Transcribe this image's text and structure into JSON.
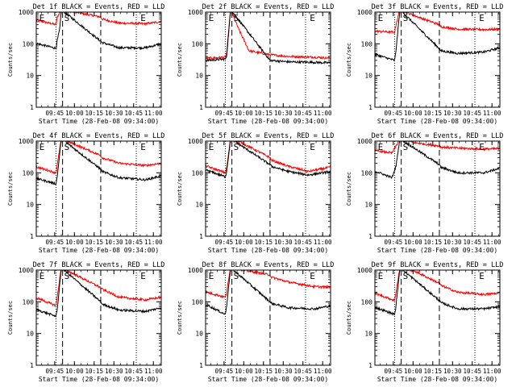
{
  "chart_data": {
    "type": "line",
    "grid": "3x3",
    "x_axis": {
      "label": "Start Time (28-Feb-08 09:34:00)",
      "ticks": [
        "09:45",
        "10:00",
        "10:15",
        "10:30",
        "10:45",
        "11:00"
      ],
      "range_min": [
        -3,
        92
      ]
    },
    "y_axis": {
      "label": "Counts/sec",
      "scale": "log",
      "range": [
        1,
        1000
      ],
      "ticks": [
        "1",
        "10",
        "100",
        "1000"
      ]
    },
    "legend": "BLACK = Events, RED = LLD",
    "series_colors": {
      "events": "#000000",
      "lld": "#ff0000"
    },
    "markers": [
      {
        "label": "E",
        "x_min": -2,
        "style": "none"
      },
      {
        "label": "",
        "x_min": 12,
        "style": "dotted"
      },
      {
        "label": "S",
        "x_min": 17,
        "style": "dashed"
      },
      {
        "label": "",
        "x_min": 46,
        "style": "dashed"
      },
      {
        "label": "",
        "x_min": 73,
        "style": "dotted"
      },
      {
        "label": "E",
        "x_min": 75,
        "style": "none"
      }
    ],
    "panels": [
      {
        "title": "Det 1f BLACK = Events, RED = LLD",
        "events": [
          [
            -2,
            100
          ],
          [
            12,
            72
          ],
          [
            13,
            130
          ],
          [
            15,
            320
          ],
          [
            16,
            1200
          ],
          [
            46,
            120
          ],
          [
            47,
            110
          ],
          [
            60,
            75
          ],
          [
            80,
            75
          ],
          [
            92,
            100
          ]
        ],
        "lld": [
          [
            -2,
            550
          ],
          [
            12,
            400
          ],
          [
            13,
            700
          ],
          [
            16,
            1200
          ],
          [
            46,
            700
          ],
          [
            47,
            600
          ],
          [
            60,
            450
          ],
          [
            80,
            430
          ],
          [
            92,
            500
          ]
        ]
      },
      {
        "title": "Det 2f BLACK = Events, RED = LLD",
        "events": [
          [
            -2,
            30
          ],
          [
            12,
            33
          ],
          [
            13,
            40
          ],
          [
            16,
            1200
          ],
          [
            46,
            30
          ],
          [
            60,
            27
          ],
          [
            80,
            26
          ],
          [
            92,
            25
          ]
        ],
        "lld": [
          [
            -2,
            35
          ],
          [
            12,
            38
          ],
          [
            13,
            50
          ],
          [
            16,
            1200
          ],
          [
            22,
            300
          ],
          [
            30,
            60
          ],
          [
            46,
            45
          ],
          [
            60,
            40
          ],
          [
            80,
            38
          ],
          [
            92,
            35
          ]
        ]
      },
      {
        "title": "Det 3f BLACK = Events, RED = LLD",
        "events": [
          [
            -2,
            45
          ],
          [
            12,
            30
          ],
          [
            13,
            60
          ],
          [
            16,
            1200
          ],
          [
            46,
            70
          ],
          [
            47,
            60
          ],
          [
            60,
            50
          ],
          [
            80,
            55
          ],
          [
            92,
            75
          ]
        ],
        "lld": [
          [
            -2,
            250
          ],
          [
            12,
            230
          ],
          [
            13,
            400
          ],
          [
            16,
            1200
          ],
          [
            26,
            800
          ],
          [
            46,
            400
          ],
          [
            47,
            350
          ],
          [
            60,
            290
          ],
          [
            80,
            280
          ],
          [
            92,
            290
          ]
        ]
      },
      {
        "title": "Det 4f BLACK = Events, RED = LLD",
        "events": [
          [
            -2,
            65
          ],
          [
            12,
            45
          ],
          [
            13,
            80
          ],
          [
            16,
            1200
          ],
          [
            46,
            130
          ],
          [
            47,
            110
          ],
          [
            60,
            70
          ],
          [
            80,
            60
          ],
          [
            92,
            80
          ]
        ],
        "lld": [
          [
            -2,
            150
          ],
          [
            12,
            100
          ],
          [
            13,
            180
          ],
          [
            16,
            1200
          ],
          [
            46,
            350
          ],
          [
            47,
            300
          ],
          [
            60,
            200
          ],
          [
            80,
            170
          ],
          [
            92,
            200
          ]
        ]
      },
      {
        "title": "Det 5f BLACK = Events, RED = LLD",
        "events": [
          [
            -2,
            120
          ],
          [
            12,
            75
          ],
          [
            13,
            110
          ],
          [
            16,
            1200
          ],
          [
            46,
            180
          ],
          [
            47,
            160
          ],
          [
            60,
            110
          ],
          [
            75,
            85
          ],
          [
            92,
            110
          ]
        ],
        "lld": [
          [
            -2,
            160
          ],
          [
            12,
            100
          ],
          [
            13,
            140
          ],
          [
            16,
            1200
          ],
          [
            24,
            900
          ],
          [
            46,
            300
          ],
          [
            47,
            250
          ],
          [
            60,
            160
          ],
          [
            75,
            110
          ],
          [
            92,
            150
          ]
        ]
      },
      {
        "title": "Det 6f BLACK = Events, RED = LLD",
        "events": [
          [
            -2,
            110
          ],
          [
            10,
            70
          ],
          [
            13,
            160
          ],
          [
            16,
            1200
          ],
          [
            46,
            180
          ],
          [
            47,
            150
          ],
          [
            60,
            100
          ],
          [
            80,
            100
          ],
          [
            92,
            140
          ]
        ],
        "lld": [
          [
            -2,
            500
          ],
          [
            10,
            420
          ],
          [
            13,
            700
          ],
          [
            16,
            1200
          ],
          [
            26,
            900
          ],
          [
            46,
            700
          ],
          [
            47,
            650
          ],
          [
            60,
            600
          ],
          [
            80,
            560
          ],
          [
            92,
            580
          ]
        ]
      },
      {
        "title": "Det 7f BLACK = Events, RED = LLD",
        "events": [
          [
            -2,
            55
          ],
          [
            12,
            35
          ],
          [
            13,
            60
          ],
          [
            16,
            1200
          ],
          [
            46,
            100
          ],
          [
            47,
            85
          ],
          [
            60,
            55
          ],
          [
            80,
            50
          ],
          [
            92,
            65
          ]
        ],
        "lld": [
          [
            -2,
            130
          ],
          [
            12,
            75
          ],
          [
            13,
            150
          ],
          [
            16,
            1200
          ],
          [
            46,
            280
          ],
          [
            47,
            250
          ],
          [
            60,
            140
          ],
          [
            80,
            115
          ],
          [
            92,
            140
          ]
        ]
      },
      {
        "title": "Det 8f BLACK = Events, RED = LLD",
        "events": [
          [
            -2,
            80
          ],
          [
            12,
            40
          ],
          [
            13,
            75
          ],
          [
            16,
            1200
          ],
          [
            46,
            100
          ],
          [
            47,
            90
          ],
          [
            60,
            65
          ],
          [
            80,
            60
          ],
          [
            92,
            75
          ]
        ],
        "lld": [
          [
            -2,
            200
          ],
          [
            12,
            140
          ],
          [
            13,
            200
          ],
          [
            16,
            1200
          ],
          [
            46,
            700
          ],
          [
            47,
            600
          ],
          [
            60,
            420
          ],
          [
            80,
            300
          ],
          [
            92,
            290
          ]
        ]
      },
      {
        "title": "Det 9f BLACK = Events, RED = LLD",
        "events": [
          [
            -2,
            65
          ],
          [
            12,
            40
          ],
          [
            13,
            70
          ],
          [
            16,
            1200
          ],
          [
            46,
            110
          ],
          [
            47,
            95
          ],
          [
            60,
            60
          ],
          [
            80,
            60
          ],
          [
            92,
            70
          ]
        ],
        "lld": [
          [
            -2,
            180
          ],
          [
            12,
            110
          ],
          [
            13,
            200
          ],
          [
            16,
            1200
          ],
          [
            28,
            900
          ],
          [
            46,
            380
          ],
          [
            47,
            330
          ],
          [
            60,
            200
          ],
          [
            80,
            170
          ],
          [
            92,
            190
          ]
        ]
      }
    ]
  }
}
